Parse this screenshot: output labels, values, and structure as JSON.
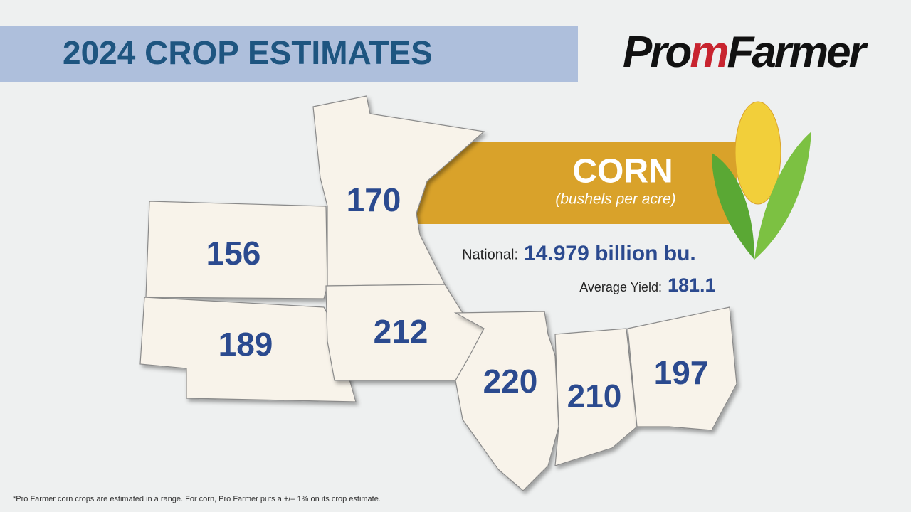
{
  "header": {
    "title": "2024 CROP ESTIMATES",
    "logo": {
      "part1": "Pro",
      "part2": "Farmer"
    }
  },
  "crop": {
    "name": "CORN",
    "unit": "(bushels per acre)"
  },
  "summary": {
    "national_label": "National:",
    "national_value": "14.979 billion bu.",
    "yield_label": "Average Yield:",
    "yield_value": "181.1"
  },
  "states": [
    {
      "yield": "170"
    },
    {
      "yield": "156"
    },
    {
      "yield": "189"
    },
    {
      "yield": "212"
    },
    {
      "yield": "220"
    },
    {
      "yield": "210"
    },
    {
      "yield": "197"
    }
  ],
  "footnote": "*Pro Farmer corn crops are estimated in a range. For corn, Pro Farmer puts a +/– 1% on its crop estimate."
}
